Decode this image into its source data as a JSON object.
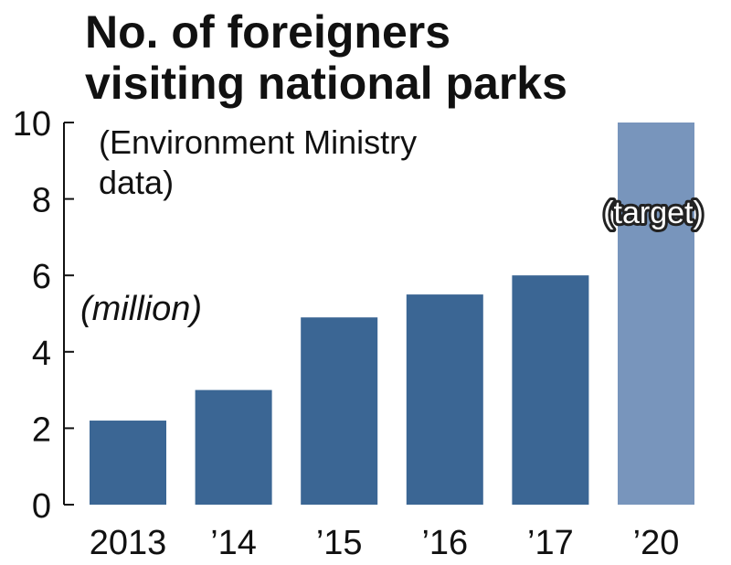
{
  "chart_data": {
    "type": "bar",
    "title_lines": [
      "No. of foreigners",
      "visiting national parks"
    ],
    "source_lines": [
      "(Environment Ministry",
      "data)"
    ],
    "unit_label": "(million)",
    "annotation": "(target)",
    "categories": [
      "2013",
      "’14",
      "’15",
      "’16",
      "’17",
      "’20"
    ],
    "values": [
      2.2,
      3.0,
      4.9,
      5.5,
      6.0,
      10.0
    ],
    "target_index": 5,
    "ylim": [
      0,
      10
    ],
    "yticks": [
      "0",
      "2",
      "4",
      "6",
      "8",
      "10"
    ],
    "colors": {
      "actual": "#3b6694",
      "target": "#7895bc",
      "axis": "#111111"
    }
  }
}
